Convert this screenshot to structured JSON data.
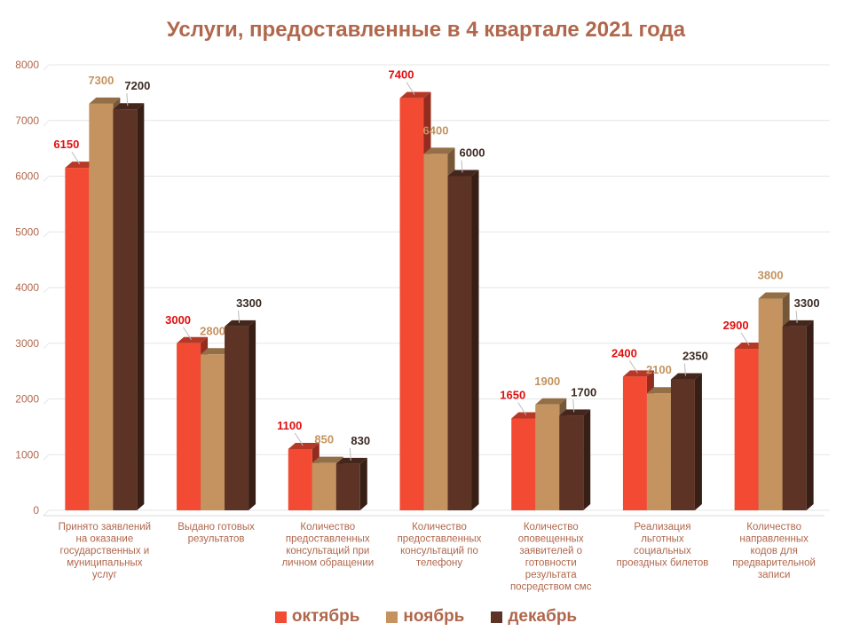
{
  "chart_data": {
    "type": "bar",
    "title": "Услуги, предоставленные в 4 квартале 2021 года",
    "categories": [
      [
        "Принято заявлений",
        "на оказание",
        "государственных и",
        "муниципальных",
        "услуг"
      ],
      [
        "Выдано готовых",
        "результатов"
      ],
      [
        "Количество",
        "предоставленных",
        "консультаций  при",
        "личном обращении"
      ],
      [
        "Количество",
        "предоставленных",
        "консультаций  по",
        "телефону"
      ],
      [
        "Количество",
        "оповещенных",
        "заявителей о",
        "готовности",
        "результата",
        "посредством смс"
      ],
      [
        "Реализация",
        "льготных",
        "социальных",
        "проездных билетов"
      ],
      [
        "Количество",
        "направленных",
        "кодов для",
        "предварительной",
        "записи"
      ]
    ],
    "series": [
      {
        "name": "октябрь",
        "color": "#f24a33",
        "label_color": "#e01010",
        "values": [
          6150,
          3000,
          1100,
          7400,
          1650,
          2400,
          2900
        ]
      },
      {
        "name": "ноябрь",
        "color": "#c4935f",
        "label_color": "#c4935f",
        "values": [
          7300,
          2800,
          850,
          6400,
          1900,
          2100,
          3800
        ]
      },
      {
        "name": "декабрь",
        "color": "#5c3325",
        "label_color": "#3a2a22",
        "values": [
          7200,
          3300,
          830,
          6000,
          1700,
          2350,
          3300
        ]
      }
    ],
    "yticks": [
      0,
      1000,
      2000,
      3000,
      4000,
      5000,
      6000,
      7000,
      8000
    ],
    "ylim": [
      0,
      8000
    ],
    "xlabel": "",
    "ylabel": "",
    "grid": true,
    "legend": "bottom"
  }
}
